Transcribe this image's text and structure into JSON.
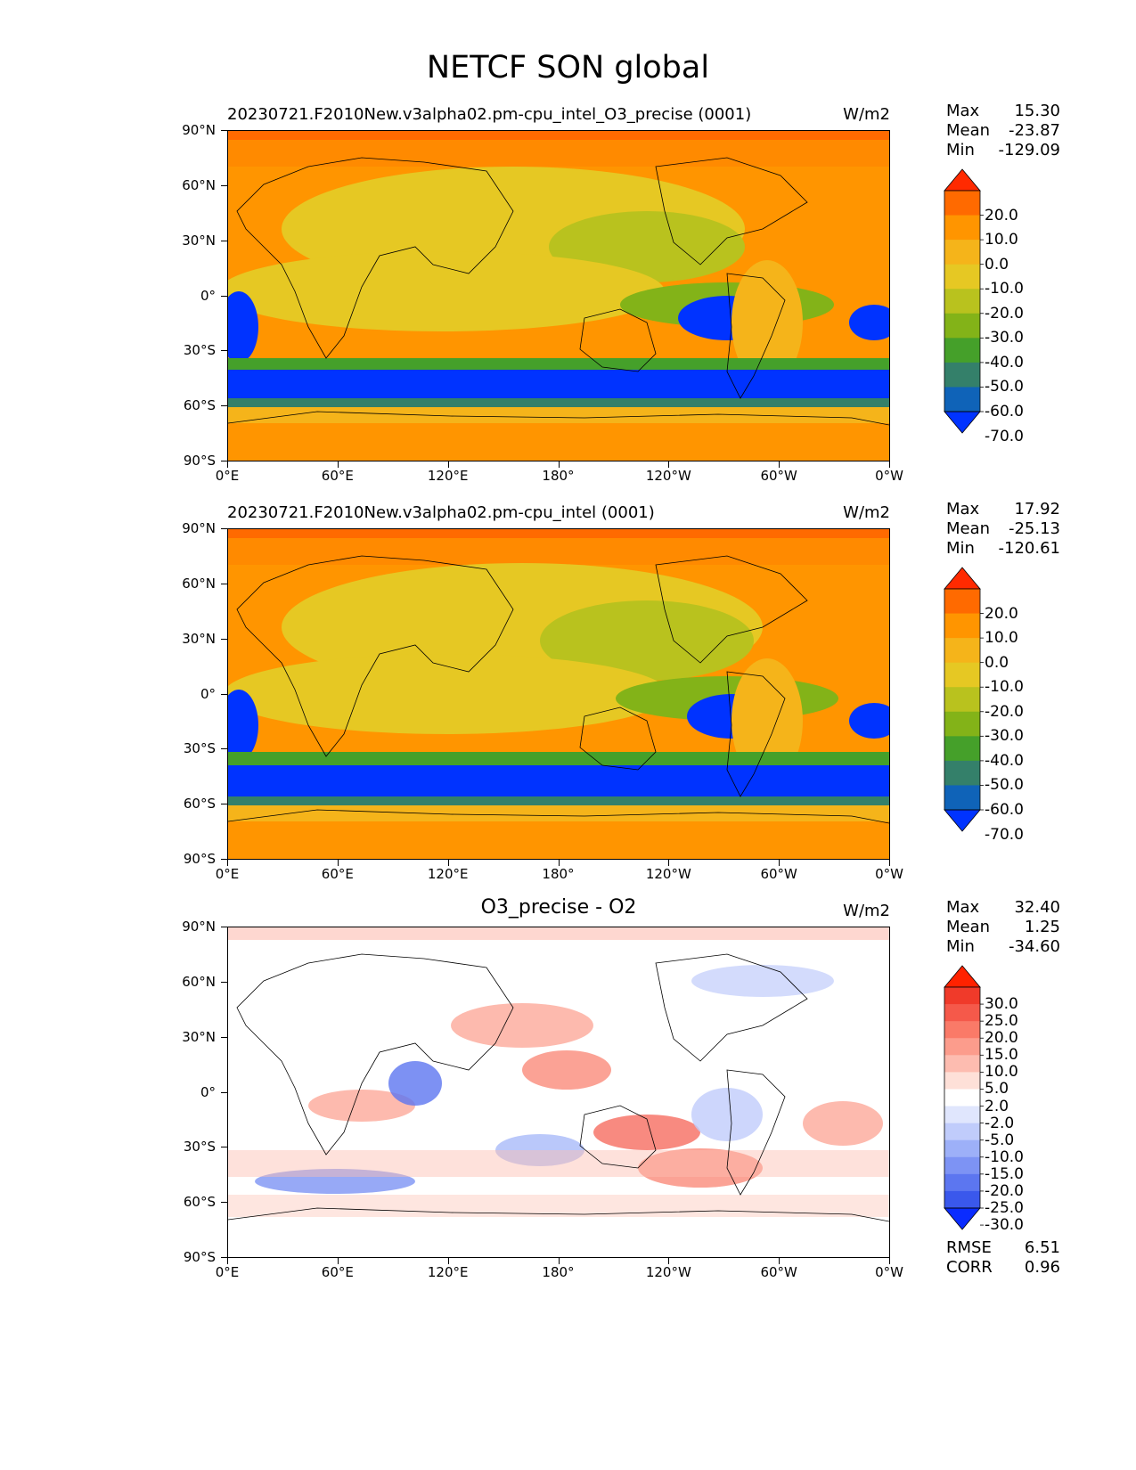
{
  "figure": {
    "title": "NETCF SON global"
  },
  "axes": {
    "lat_labels": [
      "90°N",
      "60°N",
      "30°N",
      "0°",
      "30°S",
      "60°S",
      "90°S"
    ],
    "lon_labels": [
      "0°E",
      "60°E",
      "120°E",
      "180°",
      "120°W",
      "60°W",
      "0°W"
    ]
  },
  "panels": [
    {
      "title": "20230721.F2010New.v3alpha02.pm-cpu_intel_O3_precise (0001)",
      "units": "W/m2",
      "stats": {
        "max_label": "Max",
        "max": "15.30",
        "mean_label": "Mean",
        "mean": "-23.87",
        "min_label": "Min",
        "min": "-129.09"
      },
      "colorbar": {
        "labels": [
          "20.0",
          "10.0",
          "0.0",
          "-10.0",
          "-20.0",
          "-30.0",
          "-40.0",
          "-50.0",
          "-60.0",
          "-70.0"
        ],
        "colors": [
          "#ff2a00",
          "#ff6a00",
          "#ff9500",
          "#f5b41a",
          "#e6c823",
          "#b9c21e",
          "#83b318",
          "#45a02a",
          "#34806a",
          "#0f63b8",
          "#0033ff"
        ]
      }
    },
    {
      "title": "20230721.F2010New.v3alpha02.pm-cpu_intel (0001)",
      "units": "W/m2",
      "stats": {
        "max_label": "Max",
        "max": "17.92",
        "mean_label": "Mean",
        "mean": "-25.13",
        "min_label": "Min",
        "min": "-120.61"
      },
      "colorbar": {
        "labels": [
          "20.0",
          "10.0",
          "0.0",
          "-10.0",
          "-20.0",
          "-30.0",
          "-40.0",
          "-50.0",
          "-60.0",
          "-70.0"
        ],
        "colors": [
          "#ff2a00",
          "#ff6a00",
          "#ff9500",
          "#f5b41a",
          "#e6c823",
          "#b9c21e",
          "#83b318",
          "#45a02a",
          "#34806a",
          "#0f63b8",
          "#0033ff"
        ]
      }
    },
    {
      "title": "O3_precise - O2",
      "units": "W/m2",
      "stats": {
        "max_label": "Max",
        "max": "32.40",
        "mean_label": "Mean",
        "mean": "1.25",
        "min_label": "Min",
        "min": "-34.60"
      },
      "colorbar": {
        "labels": [
          "30.0",
          "25.0",
          "20.0",
          "15.0",
          "10.0",
          "5.0",
          "2.0",
          "-2.0",
          "-5.0",
          "-10.0",
          "-15.0",
          "-20.0",
          "-25.0",
          "-30.0"
        ],
        "colors": [
          "#ff2200",
          "#f03a2a",
          "#f5594a",
          "#fa7a68",
          "#fc9c8c",
          "#fdbcb0",
          "#fee0d8",
          "#ffffff",
          "#e0e6fd",
          "#c0ccfb",
          "#9db0f8",
          "#7d93f4",
          "#5c76f0",
          "#3a58ec",
          "#0a2cff"
        ]
      },
      "metrics": {
        "rmse_label": "RMSE",
        "rmse": "6.51",
        "corr_label": "CORR",
        "corr": "0.96"
      }
    }
  ]
}
